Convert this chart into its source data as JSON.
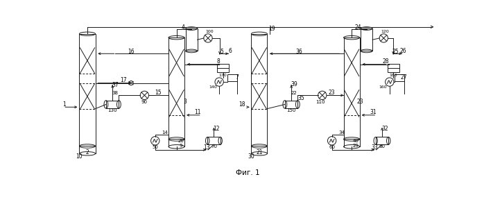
{
  "title": "Фиг. 1",
  "bg_color": "#ffffff",
  "line_color": "#1a1a1a",
  "figure_size": [
    6.98,
    2.91
  ],
  "dpi": 100
}
